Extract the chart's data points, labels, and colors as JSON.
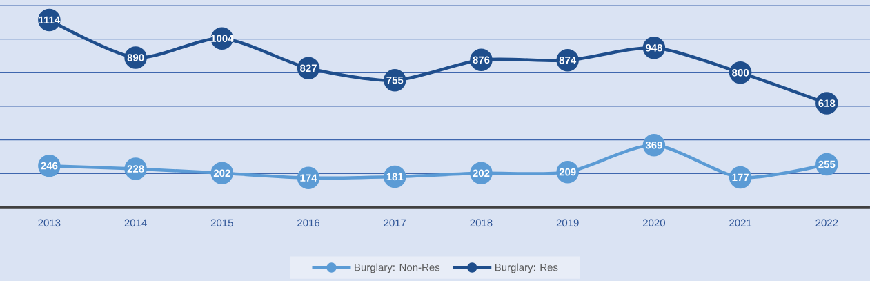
{
  "chart_data": {
    "type": "line",
    "categories": [
      "2013",
      "2014",
      "2015",
      "2016",
      "2017",
      "2018",
      "2019",
      "2020",
      "2021",
      "2022"
    ],
    "series": [
      {
        "name": "Burglary: Non-Res",
        "color": "#5b9bd5",
        "values": [
          246,
          228,
          202,
          174,
          181,
          202,
          209,
          369,
          177,
          255
        ]
      },
      {
        "name": "Burglary: Res",
        "color": "#1f4e8c",
        "values": [
          1114,
          890,
          1004,
          827,
          755,
          876,
          874,
          948,
          800,
          618
        ]
      }
    ],
    "ylim": [
      0,
      1200
    ],
    "yticks": [
      {
        "value": 0,
        "label": null
      },
      {
        "value": 200,
        "label": null
      },
      {
        "value": 400,
        "label": null
      },
      {
        "value": 600,
        "label": null
      },
      {
        "value": 800,
        "label": null
      },
      {
        "value": 1000,
        "label": null
      },
      {
        "value": 1200,
        "label": null
      }
    ],
    "grid": "y",
    "tick_labels": "x",
    "legend": "bottom",
    "marker": "circle",
    "data_labels": true
  }
}
